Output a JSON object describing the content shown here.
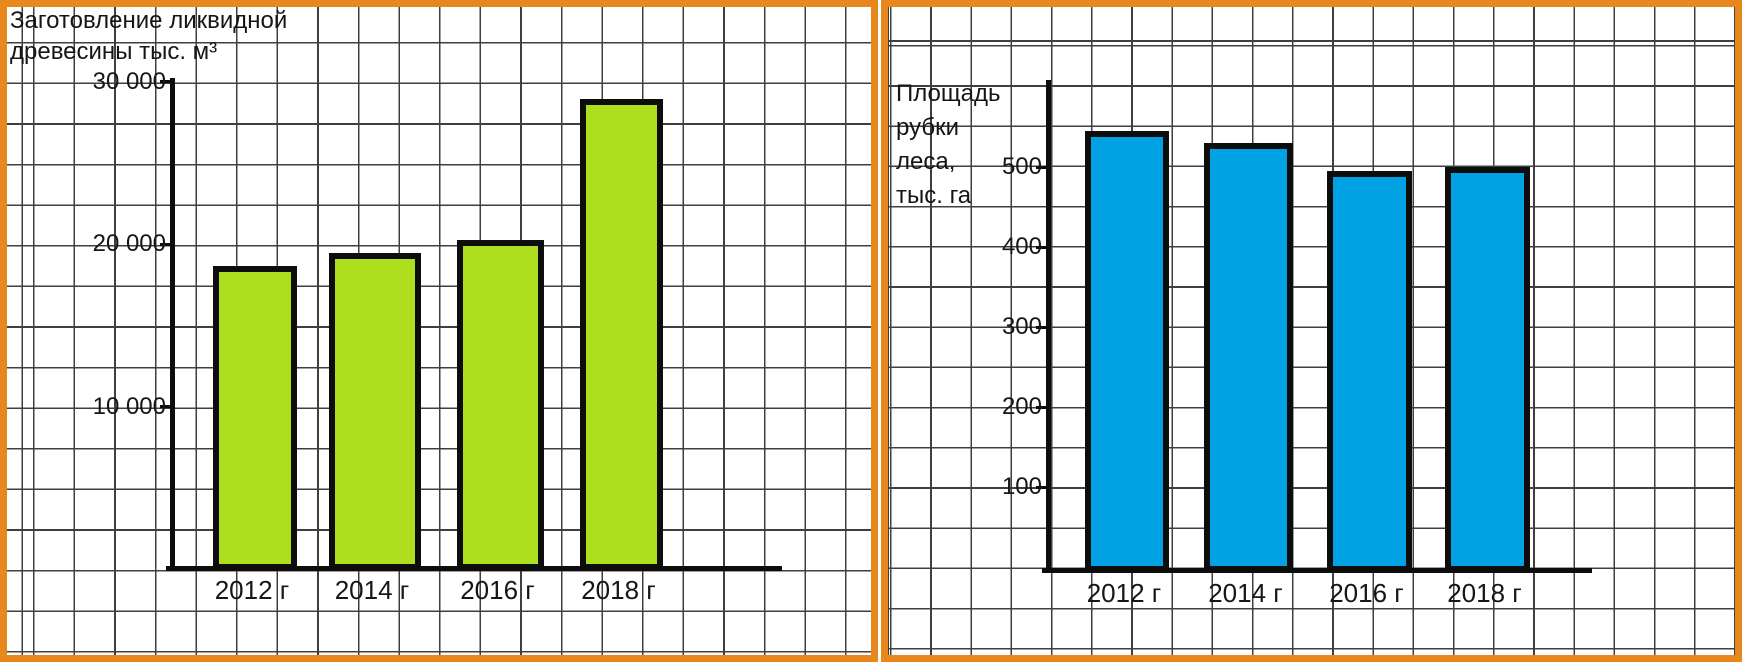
{
  "style": {
    "panel_border_color": "#E8871B",
    "grid_line_color": "#3F3F3F",
    "axis_color": "#0D0D0D",
    "text_color": "#161616",
    "paper_color": "#FFFFFF"
  },
  "chart_data": [
    {
      "type": "bar",
      "title": "Заготовление ликвидной\nдревесины тыс. м³",
      "ylabel": "тыс. м³",
      "xlabel": "",
      "categories": [
        "2012 г",
        "2014 г",
        "2016 г",
        "2018 г"
      ],
      "values": [
        18700,
        19500,
        20300,
        29000
      ],
      "y_ticks": [
        {
          "label": "10 000",
          "value": 10000
        },
        {
          "label": "20 000",
          "value": 20000
        },
        {
          "label": "30 000",
          "value": 30000
        }
      ],
      "ylim": [
        0,
        30500
      ],
      "bar_color": "#AEDF1E",
      "bar_border_color": "#0D0D0D",
      "grid": true,
      "legend": "none"
    },
    {
      "type": "bar",
      "title": "Площадь\nрубки\nлеса,\nтыс. га",
      "ylabel": "тыс. га",
      "xlabel": "",
      "categories": [
        "2012 г",
        "2014 г",
        "2016 г",
        "2018 г"
      ],
      "values": [
        545,
        530,
        495,
        500
      ],
      "y_ticks": [
        {
          "label": "100",
          "value": 100
        },
        {
          "label": "200",
          "value": 200
        },
        {
          "label": "300",
          "value": 300
        },
        {
          "label": "400",
          "value": 400
        },
        {
          "label": "500",
          "value": 500
        }
      ],
      "ylim": [
        0,
        600
      ],
      "bar_color": "#00A2E4",
      "bar_border_color": "#0D0D0D",
      "grid": true,
      "legend": "none"
    }
  ]
}
